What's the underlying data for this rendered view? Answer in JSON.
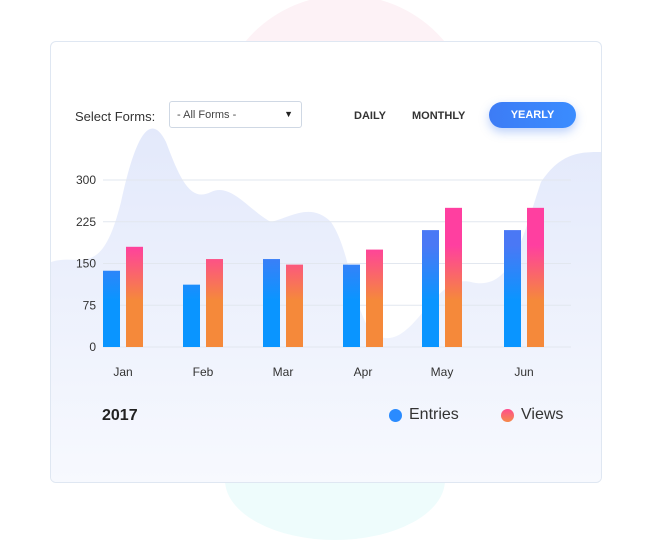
{
  "controls": {
    "select_label": "Select Forms:",
    "select_value": "- All Forms -",
    "tabs": [
      "DAILY",
      "MONTHLY",
      "YEARLY"
    ],
    "active_tab": "YEARLY"
  },
  "footer": {
    "year": "2017"
  },
  "colors": {
    "entries_top": "#4a78f5",
    "entries_bottom": "#0a95ff",
    "views_top": "#ff3fa0",
    "views_bottom": "#f5893a",
    "accent": "#3d85f8"
  },
  "chart_data": {
    "type": "bar",
    "title": "",
    "xlabel": "",
    "ylabel": "",
    "categories": [
      "Jan",
      "Feb",
      "Mar",
      "Apr",
      "May",
      "Jun"
    ],
    "series": [
      {
        "name": "Entries",
        "values": [
          137,
          112,
          158,
          148,
          210,
          210
        ]
      },
      {
        "name": "Views",
        "values": [
          180,
          158,
          148,
          175,
          250,
          250
        ]
      }
    ],
    "yticks": [
      0,
      75,
      150,
      225,
      300
    ],
    "ylim": [
      0,
      300
    ],
    "grid": true,
    "legend": "bottom-right"
  }
}
